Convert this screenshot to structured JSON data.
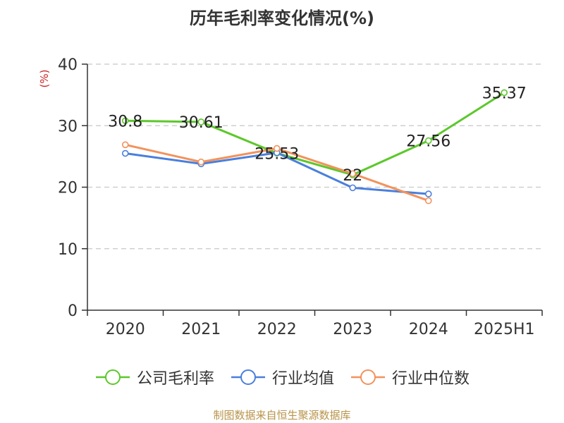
{
  "chart_data": {
    "type": "line",
    "title": "历年毛利率变化情况(%)",
    "ylabel": "(%)",
    "xlabel": "",
    "categories": [
      "2020",
      "2021",
      "2022",
      "2023",
      "2024",
      "2025H1"
    ],
    "ylim": [
      0,
      40
    ],
    "yticks": [
      0,
      10,
      20,
      30,
      40
    ],
    "grid": true,
    "legend_position": "bottom",
    "series": [
      {
        "name": "公司毛利率",
        "color": "#5cc82b",
        "values": [
          30.8,
          30.61,
          25.53,
          22,
          27.56,
          35.37
        ],
        "labels": [
          "30.8",
          "30.61",
          "25.53",
          "22",
          "27.56",
          "35.37"
        ]
      },
      {
        "name": "行业均值",
        "color": "#4a7fdc",
        "values": [
          25.5,
          23.8,
          25.6,
          19.9,
          18.9,
          null
        ]
      },
      {
        "name": "行业中位数",
        "color": "#f2925c",
        "values": [
          26.9,
          24.1,
          26.3,
          22.2,
          17.8,
          null
        ]
      }
    ]
  },
  "source": "制图数据来自恒生聚源数据库"
}
